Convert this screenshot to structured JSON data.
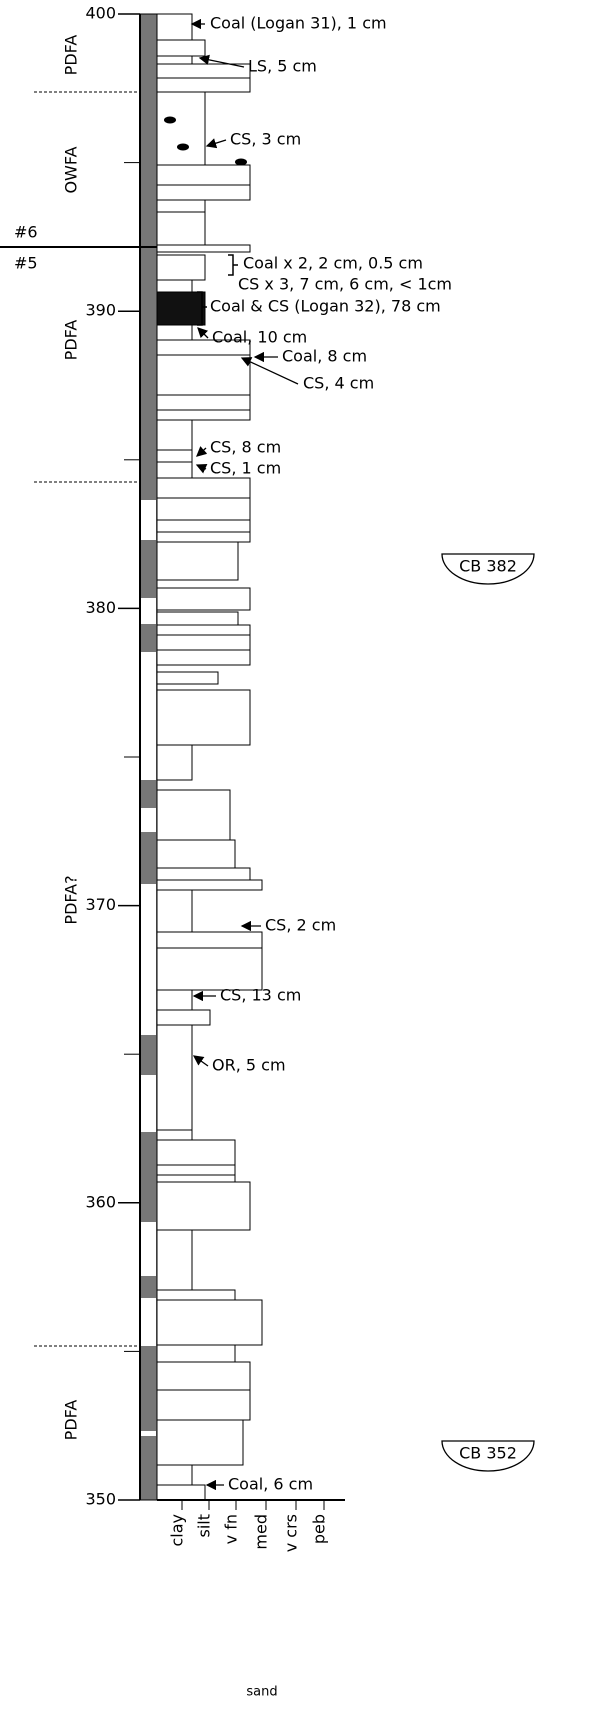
{
  "depth_axis": {
    "lim": [
      350,
      400
    ],
    "ticks": [
      400,
      390,
      380,
      370,
      360,
      350
    ],
    "minor_ticks": [
      395,
      385,
      375,
      365,
      355
    ]
  },
  "facies": [
    "PDFA",
    "OWFA",
    "PDFA",
    "PDFA?",
    "PDFA"
  ],
  "sequence_labels": [
    "#6",
    "#5"
  ],
  "annotations": [
    "Coal (Logan 31), 1 cm",
    "LS, 5 cm",
    "CS, 3 cm",
    "Coal x 2, 2 cm, 0.5 cm",
    "CS x 3, 7 cm, 6 cm, < 1cm",
    "Coal & CS (Logan 32), 78 cm",
    "Coal, 10 cm",
    "Coal, 8 cm",
    "CS, 4 cm",
    "CS, 8 cm",
    "CS, 1 cm",
    "CS, 2 cm",
    "CS, 13 cm",
    "OR, 5 cm",
    "Coal, 6 cm"
  ],
  "samples": [
    "CB 382",
    "CB 352"
  ],
  "grain_size": {
    "classes": [
      "clay",
      "silt",
      "v fn",
      "med",
      "v crs",
      "peb"
    ],
    "sand": "sand"
  }
}
